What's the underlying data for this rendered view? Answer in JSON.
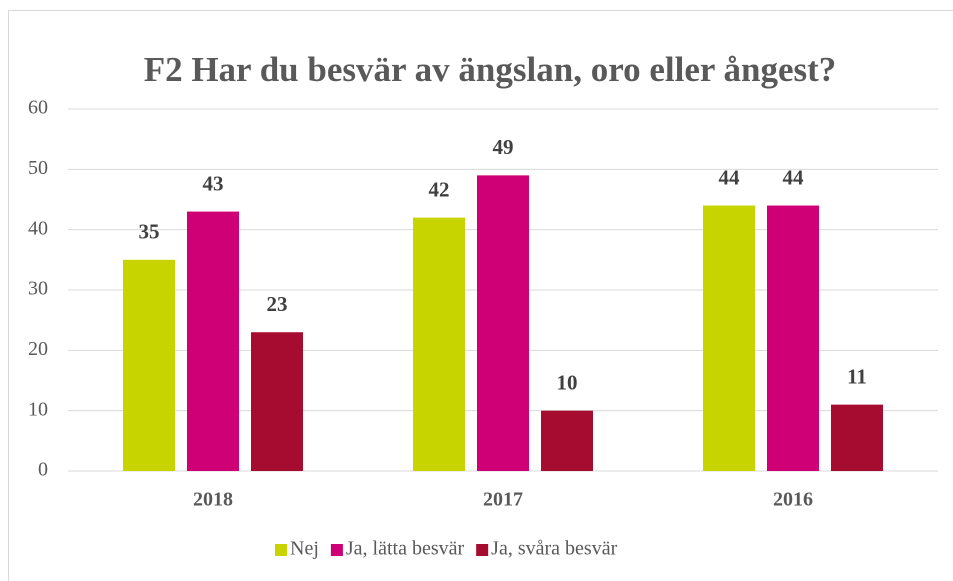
{
  "chart_data": {
    "type": "bar",
    "title": "F2 Har du besvär av ängslan, oro eller ångest?",
    "categories": [
      "2018",
      "2017",
      "2016"
    ],
    "series": [
      {
        "name": "Nej",
        "color": "#c8d400",
        "values": [
          35,
          42,
          44
        ]
      },
      {
        "name": "Ja, lätta besvär",
        "color": "#cf0076",
        "values": [
          43,
          49,
          44
        ]
      },
      {
        "name": "Ja, svåra besvär",
        "color": "#a60c30",
        "values": [
          23,
          10,
          11
        ]
      }
    ],
    "ylim": [
      0,
      60
    ],
    "yticks": [
      0,
      10,
      20,
      30,
      40,
      50,
      60
    ],
    "grid": true,
    "legend": "bottom"
  }
}
